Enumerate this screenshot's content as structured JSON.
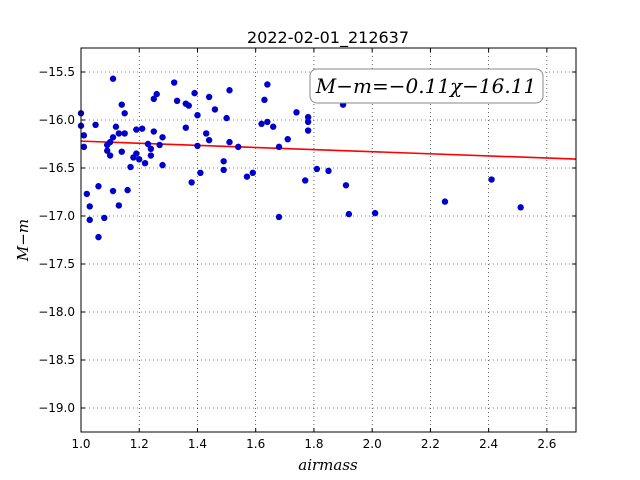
{
  "chart_data": {
    "type": "scatter",
    "title": "2022-02-01_212637",
    "xlabel": "airmass",
    "ylabel": "M−m",
    "xlim": [
      1.0,
      2.7
    ],
    "ylim": [
      -15.25,
      -19.25
    ],
    "y_inverted": true,
    "grid": true,
    "x_ticks": [
      1.0,
      1.2,
      1.4,
      1.6,
      1.8,
      2.0,
      2.2,
      2.4,
      2.6
    ],
    "x_tick_labels": [
      "1.0",
      "1.2",
      "1.4",
      "1.6",
      "1.8",
      "2.0",
      "2.2",
      "2.4",
      "2.6"
    ],
    "y_ticks": [
      -15.5,
      -16.0,
      -16.5,
      -17.0,
      -17.5,
      -18.0,
      -18.5,
      -19.0
    ],
    "y_tick_labels": [
      "−15.5",
      "−16.0",
      "−16.5",
      "−17.0",
      "−17.5",
      "−18.0",
      "−18.5",
      "−19.0"
    ],
    "annotation": "M−m=−0.11χ−16.11",
    "fit": {
      "slope": -0.11,
      "intercept": -16.11,
      "color": "#ff0000"
    },
    "marker_color": "#0000cc",
    "series": [
      {
        "x": [
          1.0,
          1.0,
          1.01,
          1.01,
          1.02,
          1.03,
          1.03,
          1.05,
          1.06,
          1.06,
          1.08,
          1.09,
          1.09,
          1.1,
          1.1,
          1.11,
          1.11,
          1.11,
          1.12,
          1.13,
          1.13,
          1.14,
          1.14,
          1.15,
          1.15,
          1.16,
          1.17,
          1.18,
          1.19,
          1.19,
          1.2,
          1.21,
          1.22,
          1.23,
          1.24,
          1.24,
          1.25,
          1.25,
          1.26,
          1.27,
          1.28,
          1.28,
          1.32,
          1.33,
          1.36,
          1.36,
          1.37,
          1.38,
          1.39,
          1.4,
          1.4,
          1.41,
          1.43,
          1.44,
          1.44,
          1.46,
          1.49,
          1.49,
          1.5,
          1.51,
          1.51,
          1.54,
          1.57,
          1.59,
          1.62,
          1.63,
          1.64,
          1.64,
          1.66,
          1.68,
          1.68,
          1.71,
          1.74,
          1.77,
          1.78,
          1.78,
          1.78,
          1.81,
          1.85,
          1.9,
          1.91,
          1.92,
          2.01,
          2.25,
          2.41,
          2.51
        ],
        "y": [
          -15.93,
          -16.06,
          -16.16,
          -16.28,
          -16.77,
          -16.9,
          -17.04,
          -16.05,
          -17.22,
          -16.69,
          -17.02,
          -16.26,
          -16.32,
          -16.23,
          -16.37,
          -16.74,
          -15.57,
          -16.18,
          -16.07,
          -16.89,
          -16.14,
          -15.84,
          -16.33,
          -15.93,
          -16.14,
          -16.73,
          -16.49,
          -16.39,
          -16.35,
          -16.1,
          -16.41,
          -16.09,
          -16.45,
          -16.25,
          -16.3,
          -16.37,
          -15.78,
          -16.12,
          -15.73,
          -16.26,
          -16.47,
          -16.18,
          -15.61,
          -15.8,
          -15.83,
          -16.08,
          -15.85,
          -16.65,
          -15.72,
          -15.95,
          -16.27,
          -16.55,
          -16.14,
          -16.21,
          -15.76,
          -15.89,
          -16.43,
          -16.52,
          -15.98,
          -16.23,
          -15.69,
          -16.28,
          -16.59,
          -16.55,
          -16.04,
          -15.79,
          -15.63,
          -16.02,
          -16.07,
          -17.01,
          -16.28,
          -16.2,
          -15.92,
          -16.63,
          -15.97,
          -16.02,
          -16.11,
          -16.51,
          -16.53,
          -15.84,
          -16.68,
          -16.98,
          -16.97,
          -16.85,
          -16.62,
          -16.91
        ]
      }
    ]
  }
}
